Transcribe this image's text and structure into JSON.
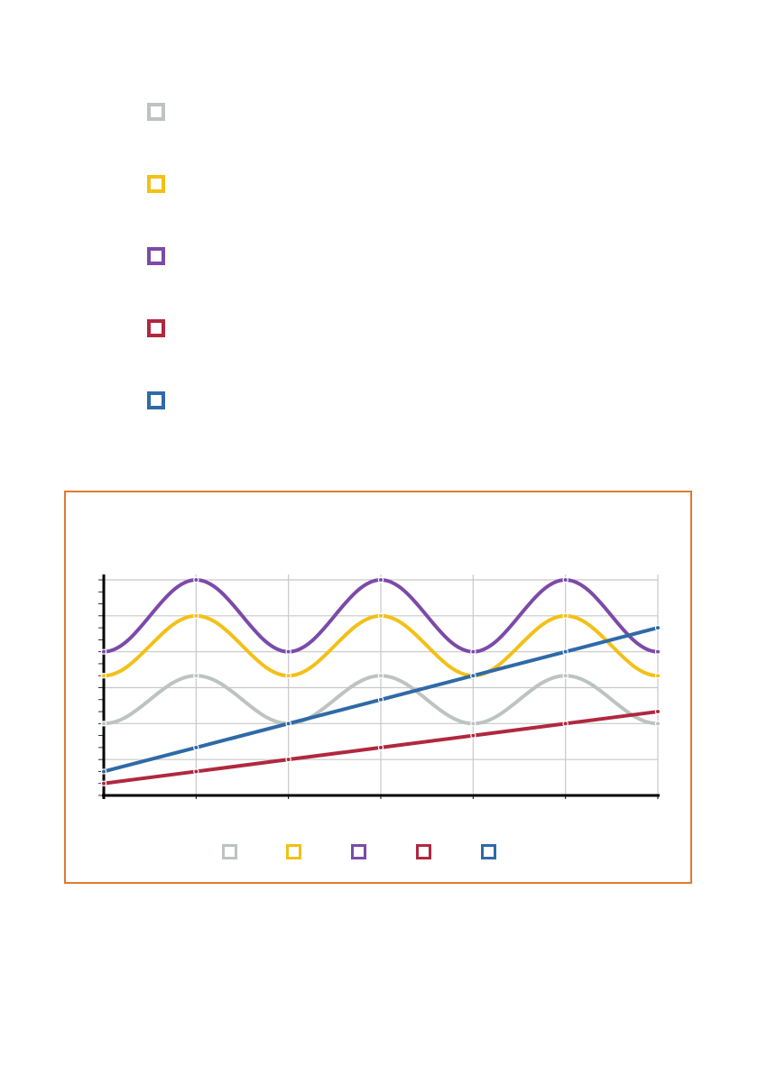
{
  "chart_data": {
    "type": "line",
    "title": "",
    "xlabel": "",
    "ylabel": "",
    "x": [
      0,
      1,
      2,
      3,
      4,
      5,
      6
    ],
    "xlim": [
      0,
      6
    ],
    "ylim": [
      0,
      18
    ],
    "grid": true,
    "legend_placement": "bottom",
    "series": [
      {
        "color": "#bdc3c0",
        "curve": "smooth",
        "values": [
          6,
          10,
          6,
          10,
          6,
          10,
          6
        ]
      },
      {
        "color": "#f2c018",
        "curve": "smooth",
        "values": [
          10,
          15,
          10,
          15,
          10,
          15,
          10
        ]
      },
      {
        "color": "#7c4aa8",
        "curve": "smooth",
        "values": [
          12,
          18,
          12,
          18,
          12,
          18,
          12
        ]
      },
      {
        "color": "#b0283f",
        "curve": "linear",
        "values": [
          1,
          2,
          3,
          4,
          5,
          6,
          7
        ]
      },
      {
        "color": "#2f6aa7",
        "curve": "linear",
        "values": [
          2,
          4,
          6,
          8,
          10,
          12,
          14
        ]
      }
    ]
  },
  "colors": {
    "frame": "#e07a2e",
    "grid": "#c8c8c8",
    "axis": "#000000"
  }
}
